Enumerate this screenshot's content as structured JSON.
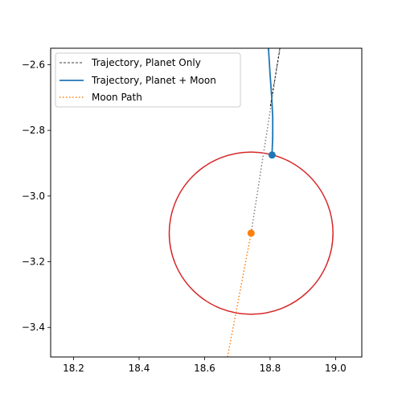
{
  "chart_data": {
    "type": "line",
    "title": "",
    "xlabel": "",
    "ylabel": "",
    "xlim": [
      18.13,
      19.08
    ],
    "ylim": [
      -3.49,
      -2.55
    ],
    "xticks": [
      18.2,
      18.4,
      18.6,
      18.8,
      19.0
    ],
    "xtick_labels": [
      "18.2",
      "18.4",
      "18.6",
      "18.8",
      "19.0"
    ],
    "yticks": [
      -2.6,
      -2.8,
      -3.0,
      -3.2,
      -3.4
    ],
    "ytick_labels": [
      "−2.6",
      "−2.8",
      "−3.0",
      "−3.2",
      "−3.4"
    ],
    "grid": false,
    "legend_position": "top-left",
    "series": [
      {
        "name": "Trajectory, Planet Only",
        "style": "dashed",
        "color": "#000000",
        "x": [
          18.83,
          18.8
        ],
        "y": [
          -2.55,
          -2.73
        ]
      },
      {
        "name": "Trajectory, Planet + Moon",
        "style": "solid",
        "color": "#1f77b4",
        "x": [
          18.795,
          18.8,
          18.805,
          18.808,
          18.808,
          18.806
        ],
        "y": [
          -2.55,
          -2.63,
          -2.7,
          -2.76,
          -2.82,
          -2.87
        ]
      },
      {
        "name": "Moon Path",
        "style": "dotted",
        "color": "#ff7f0e",
        "x": [
          18.67,
          18.742
        ],
        "y": [
          -3.49,
          -3.113
        ]
      }
    ],
    "extra_lines": [
      {
        "style": "dotted",
        "color": "#808080",
        "x": [
          18.742,
          18.83
        ],
        "y": [
          -3.113,
          -2.55
        ]
      }
    ],
    "circle": {
      "color": "#d62728",
      "center": [
        18.742,
        -3.113
      ],
      "radius_x": 0.25,
      "radius_y": 0.247
    },
    "markers": [
      {
        "color": "#1f77b4",
        "x": 18.806,
        "y": -2.875
      },
      {
        "color": "#ff7f0e",
        "x": 18.742,
        "y": -3.113
      }
    ]
  }
}
